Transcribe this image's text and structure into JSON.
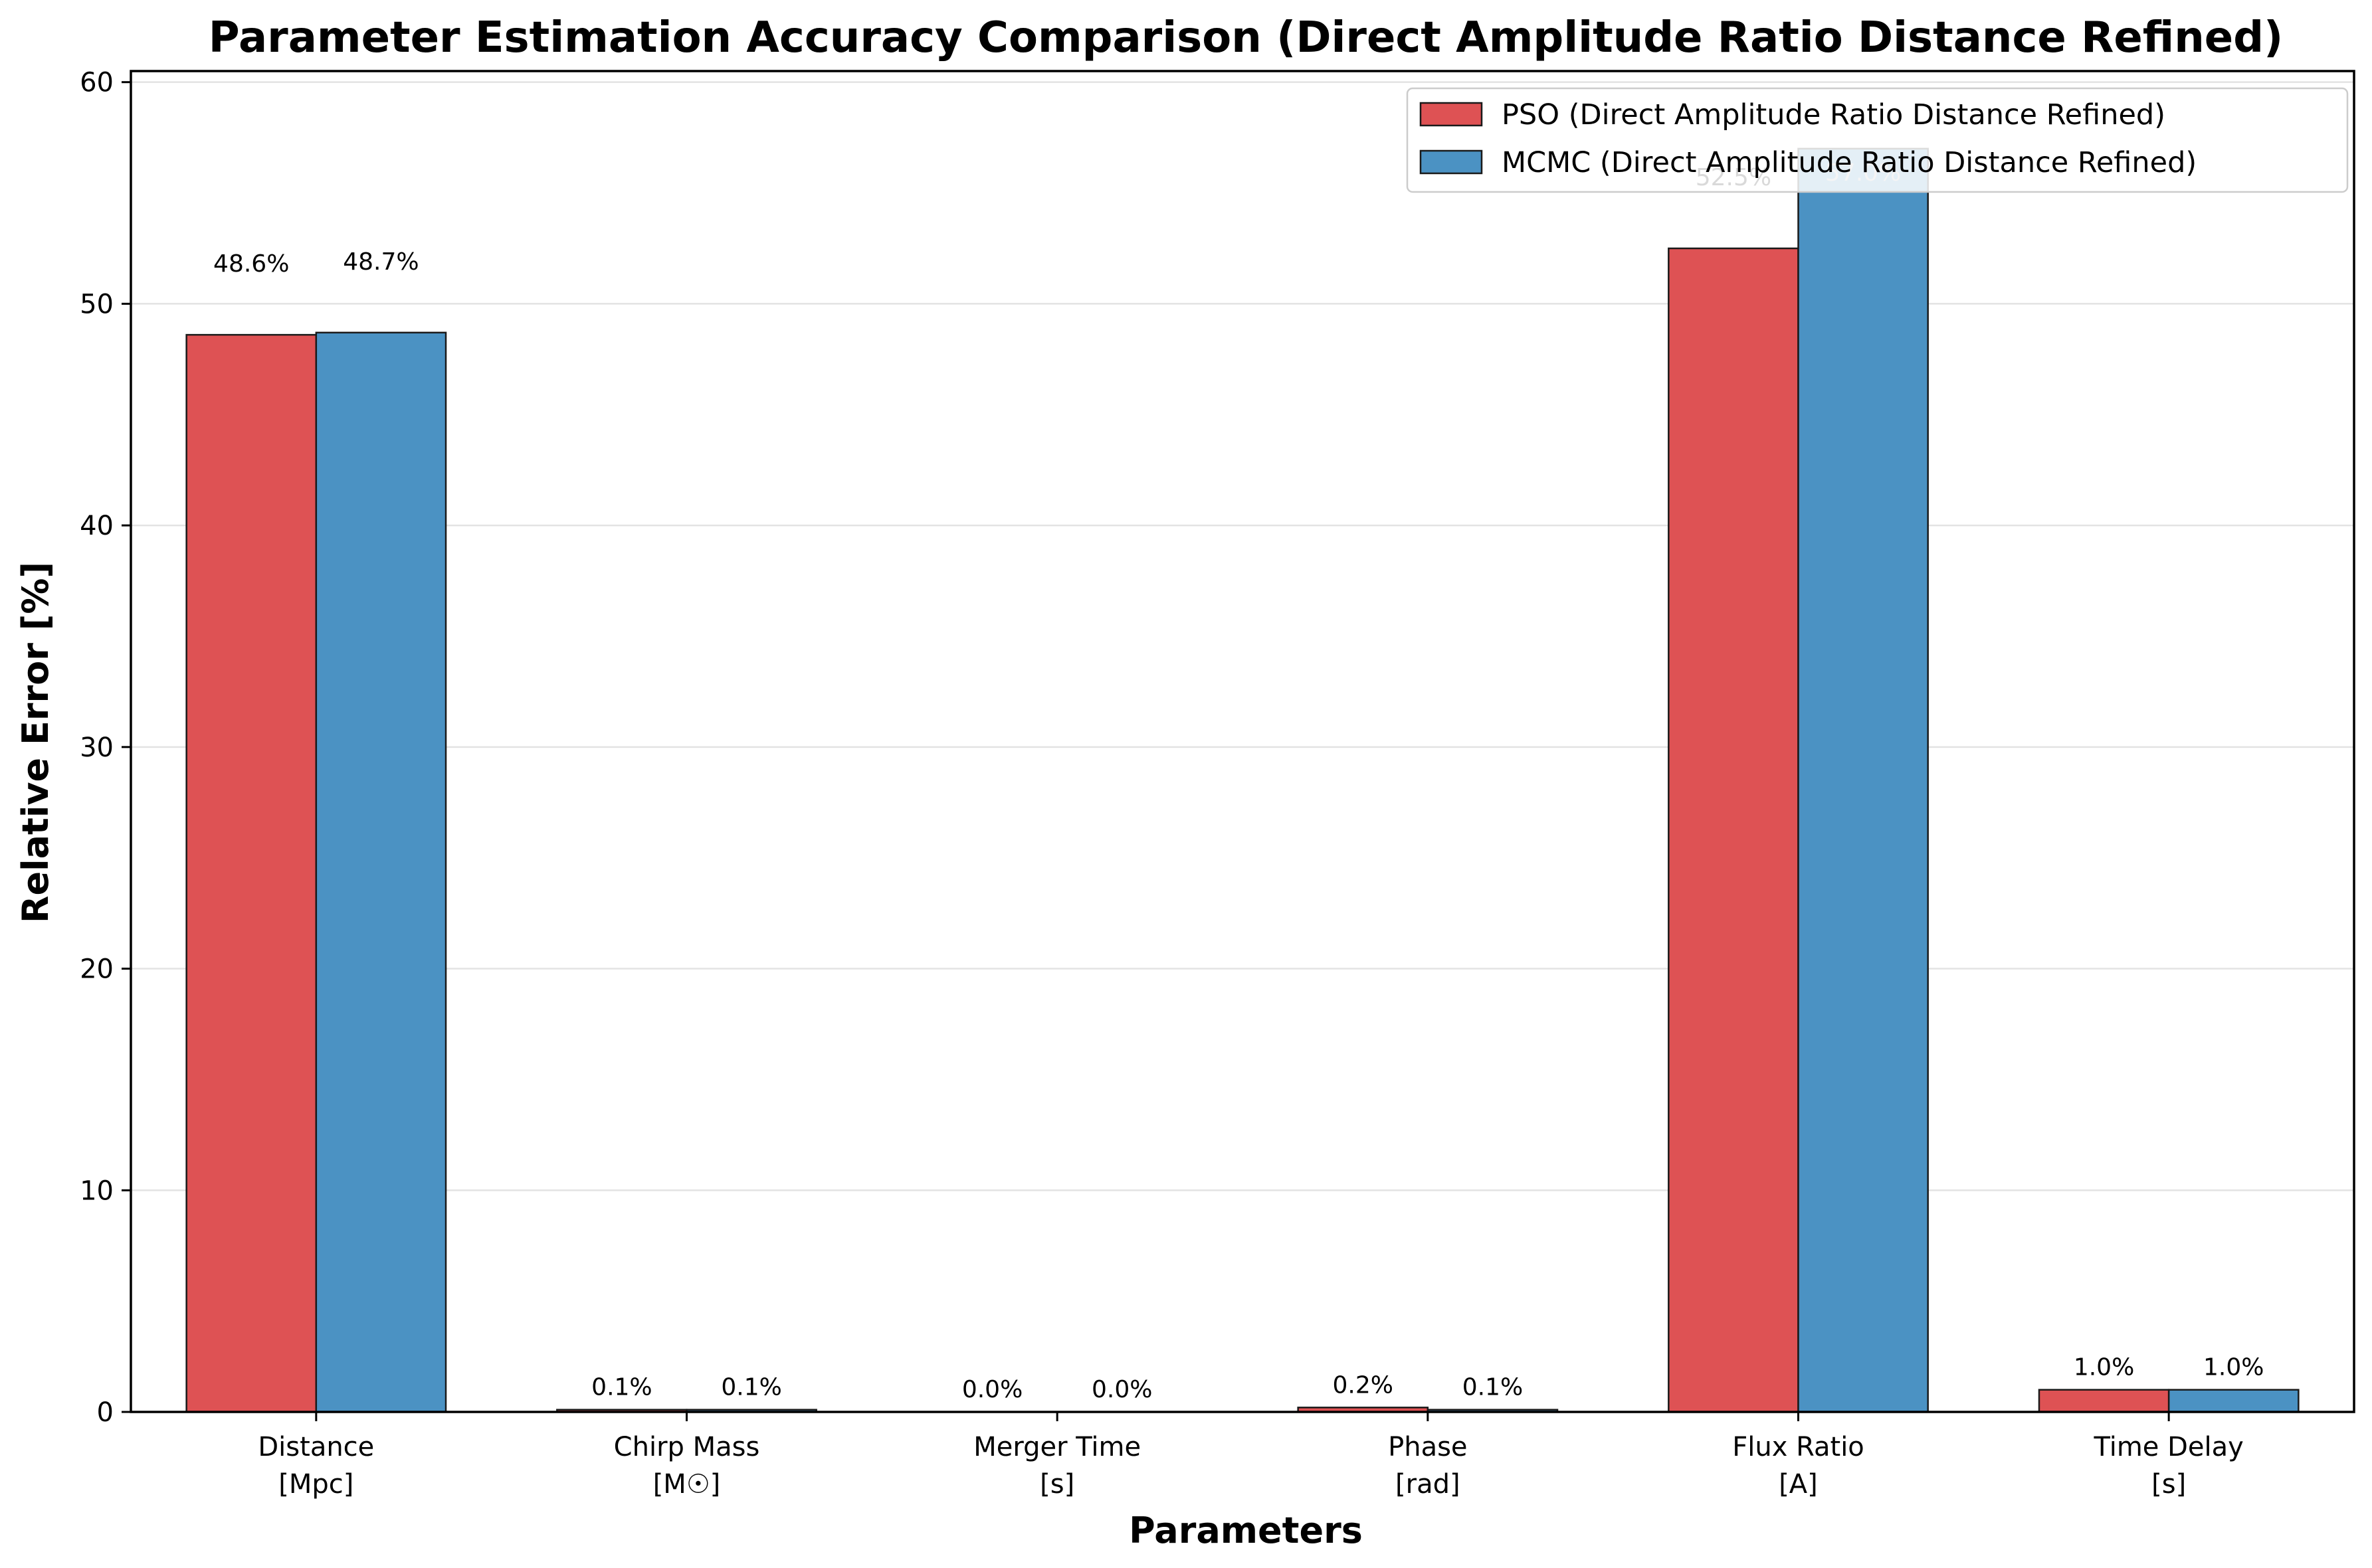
{
  "chart_data": {
    "type": "bar",
    "title": "Parameter Estimation Accuracy Comparison (Direct Amplitude Ratio Distance Refined)",
    "xlabel": "Parameters",
    "ylabel": "Relative Error [%]",
    "ylim": [
      0,
      60.5
    ],
    "yticks": [
      0,
      10,
      20,
      30,
      40,
      50,
      60
    ],
    "grid": "y",
    "legend_position": "top-right",
    "categories": [
      [
        "Distance",
        "[Mpc]"
      ],
      [
        "Chirp Mass",
        "[M☉]"
      ],
      [
        "Merger Time",
        "[s]"
      ],
      [
        "Phase",
        "[rad]"
      ],
      [
        "Flux Ratio",
        "[A]"
      ],
      [
        "Time Delay",
        "[s]"
      ]
    ],
    "series": [
      {
        "name": "PSO (Direct Amplitude Ratio Distance Refined)",
        "color": "#de5254",
        "values": [
          48.6,
          0.1,
          0.0,
          0.2,
          52.5,
          1.0
        ],
        "labels": [
          "48.6%",
          "0.1%",
          "0.0%",
          "0.2%",
          "52.5%",
          "1.0%"
        ]
      },
      {
        "name": "MCMC (Direct Amplitude Ratio Distance Refined)",
        "color": "#4b92c3",
        "values": [
          48.7,
          0.1,
          0.0,
          0.1,
          57.0,
          1.0
        ],
        "labels": [
          "48.7%",
          "0.1%",
          "0.0%",
          "0.1%",
          "57.0%",
          "1.0%"
        ]
      }
    ]
  }
}
